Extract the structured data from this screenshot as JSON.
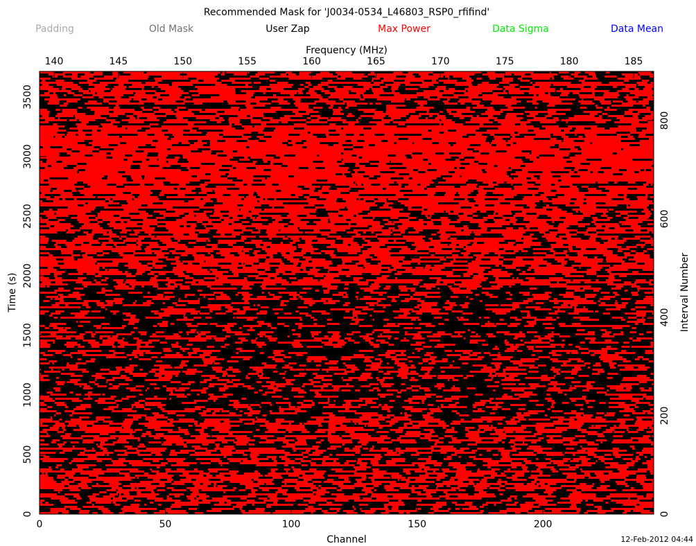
{
  "chart_data": {
    "type": "mask",
    "title": "Recommended Mask for 'J0034-0534_L46803_RSP0_rfifind'",
    "legend": [
      {
        "name": "Padding",
        "color": "#aaaaaa"
      },
      {
        "name": "Old Mask",
        "color": "#707070"
      },
      {
        "name": "User Zap",
        "color": "#000000"
      },
      {
        "name": "Max Power",
        "color": "#ff0000"
      },
      {
        "name": "Data Sigma",
        "color": "#00ee00"
      },
      {
        "name": "Data Mean",
        "color": "#0000ff"
      }
    ],
    "mask_color": "#ff0000",
    "x_label": "Channel",
    "xlim": [
      0,
      244
    ],
    "xticks": [
      0,
      50,
      100,
      150,
      200
    ],
    "x2_label": "Frequency (MHz)",
    "x2lim": [
      138.87,
      186.56
    ],
    "x2ticks": [
      140,
      145,
      150,
      155,
      160,
      165,
      170,
      175,
      180,
      185
    ],
    "y_label": "Time (s)",
    "ylim": [
      0,
      3715
    ],
    "yticks": [
      0,
      500,
      1000,
      1500,
      2000,
      2500,
      3000,
      3500
    ],
    "y2_label": "Interval Number",
    "y2lim": [
      0,
      900
    ],
    "y2ticks": [
      0,
      200,
      400,
      600,
      800
    ],
    "date": "12-Feb-2012 04:44"
  }
}
